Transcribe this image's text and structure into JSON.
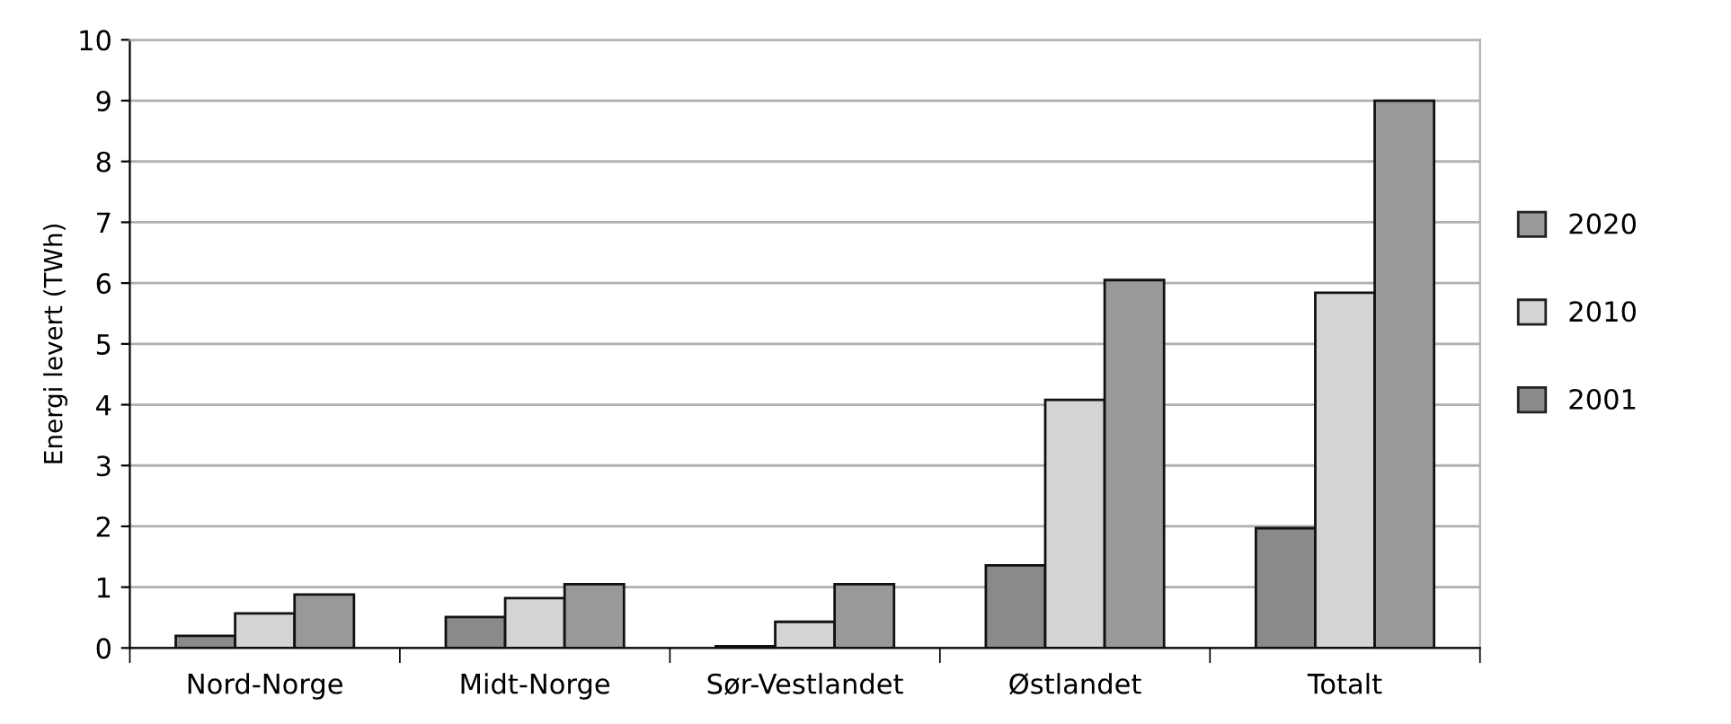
{
  "chart_data": {
    "type": "bar",
    "ylabel": "Energi levert (TWh)",
    "categories": [
      "Nord-Norge",
      "Midt-Norge",
      "Sør-Vestlandet",
      "Østlandet",
      "Totalt"
    ],
    "series": [
      {
        "name": "2001",
        "color": "#8a8a8a",
        "values": [
          0.2,
          0.51,
          0.03,
          1.36,
          1.97
        ]
      },
      {
        "name": "2010",
        "color": "#d4d4d4",
        "values": [
          0.57,
          0.82,
          0.43,
          4.08,
          5.84
        ]
      },
      {
        "name": "2020",
        "color": "#999999",
        "values": [
          0.88,
          1.05,
          1.05,
          6.05,
          9.0
        ]
      }
    ],
    "ylim": [
      0,
      10
    ],
    "yticks": [
      0,
      1,
      2,
      3,
      4,
      5,
      6,
      7,
      8,
      9,
      10
    ],
    "grid": "y",
    "legend": "right"
  }
}
